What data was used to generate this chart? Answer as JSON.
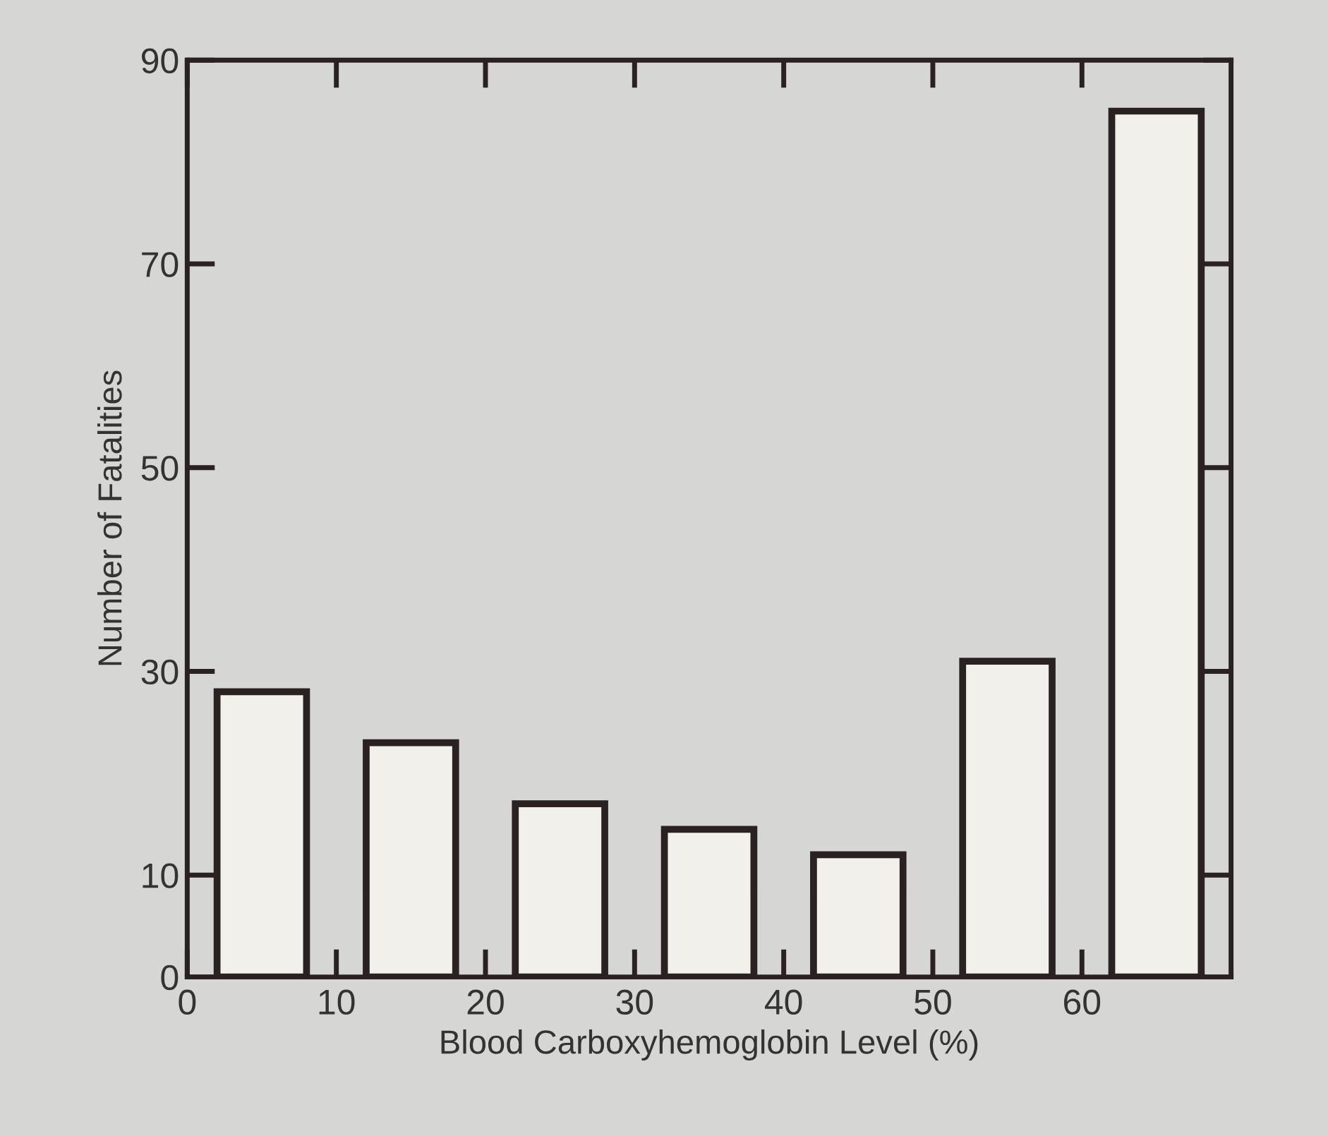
{
  "chart_data": {
    "type": "bar",
    "xlabel": "Blood Carboxyhemoglobin Level (%)",
    "ylabel": "Number of Fatalities",
    "x": [
      5,
      15,
      25,
      35,
      45,
      55,
      65
    ],
    "values": [
      28,
      23,
      17,
      14.5,
      12,
      31,
      85
    ],
    "color": "#f1f0ea",
    "xlim": [
      0,
      70
    ],
    "xticks": [
      0,
      10,
      20,
      30,
      40,
      50,
      60
    ],
    "ylim": [
      0,
      90
    ],
    "yticks": [
      0,
      10,
      30,
      50,
      70,
      90
    ],
    "grid": false,
    "legend": false
  }
}
